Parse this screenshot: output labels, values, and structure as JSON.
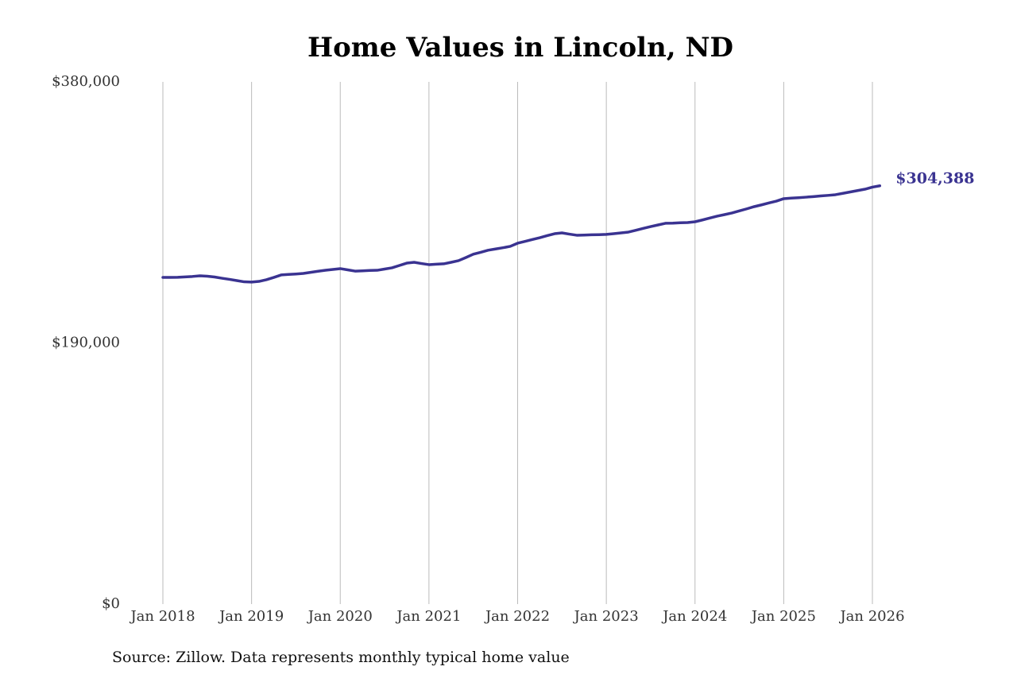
{
  "chart_data": {
    "type": "line",
    "title": "Home Values in Lincoln, ND",
    "source": "Source: Zillow. Data represents monthly typical home value",
    "color": "#3a3391",
    "x": [
      "2018-01",
      "2018-02",
      "2018-03",
      "2018-04",
      "2018-05",
      "2018-06",
      "2018-07",
      "2018-08",
      "2018-09",
      "2018-10",
      "2018-11",
      "2018-12",
      "2019-01",
      "2019-02",
      "2019-03",
      "2019-04",
      "2019-05",
      "2019-06",
      "2019-07",
      "2019-08",
      "2019-09",
      "2019-10",
      "2019-11",
      "2019-12",
      "2020-01",
      "2020-02",
      "2020-03",
      "2020-04",
      "2020-05",
      "2020-06",
      "2020-07",
      "2020-08",
      "2020-09",
      "2020-10",
      "2020-11",
      "2020-12",
      "2021-01",
      "2021-02",
      "2021-03",
      "2021-04",
      "2021-05",
      "2021-06",
      "2021-07",
      "2021-08",
      "2021-09",
      "2021-10",
      "2021-11",
      "2021-12",
      "2022-01",
      "2022-02",
      "2022-03",
      "2022-04",
      "2022-05",
      "2022-06",
      "2022-07",
      "2022-08",
      "2022-09",
      "2022-10",
      "2022-11",
      "2022-12",
      "2023-01",
      "2023-02",
      "2023-03",
      "2023-04",
      "2023-05",
      "2023-06",
      "2023-07",
      "2023-08",
      "2023-09",
      "2023-10",
      "2023-11",
      "2023-12",
      "2024-01",
      "2024-02",
      "2024-03",
      "2024-04",
      "2024-05",
      "2024-06",
      "2024-07",
      "2024-08",
      "2024-09",
      "2024-10",
      "2024-11",
      "2024-12",
      "2025-01",
      "2025-02",
      "2025-03",
      "2025-04",
      "2025-05",
      "2025-06",
      "2025-07",
      "2025-08",
      "2025-09",
      "2025-10",
      "2025-11",
      "2025-12",
      "2026-01",
      "2026-02"
    ],
    "values": [
      237700,
      237700,
      237800,
      238100,
      238400,
      238900,
      238600,
      238000,
      237100,
      236300,
      235400,
      234500,
      234300,
      234800,
      236000,
      237700,
      239500,
      239900,
      240200,
      240600,
      241400,
      242200,
      242900,
      243500,
      244100,
      243200,
      242300,
      242500,
      242800,
      242900,
      243800,
      244700,
      246400,
      248100,
      248700,
      247800,
      247000,
      247300,
      247600,
      248700,
      249900,
      252200,
      254600,
      256000,
      257500,
      258400,
      259300,
      260300,
      262600,
      263900,
      265300,
      266600,
      268100,
      269500,
      270100,
      269200,
      268400,
      268500,
      268700,
      268800,
      269000,
      269500,
      270100,
      270700,
      272000,
      273400,
      274700,
      275900,
      277100,
      277200,
      277500,
      277600,
      278200,
      279500,
      280900,
      282300,
      283400,
      284600,
      286100,
      287600,
      289200,
      290500,
      291900,
      293200,
      295000,
      295400,
      295700,
      296100,
      296500,
      297000,
      297400,
      297900,
      298900,
      299900,
      300900,
      301900,
      303400,
      304388
    ],
    "value_labels": [
      null,
      null,
      null,
      null,
      null,
      null,
      null,
      null,
      null,
      null,
      null,
      null,
      null,
      null,
      null,
      null,
      null,
      null,
      null,
      null,
      null,
      null,
      null,
      null,
      null,
      null,
      null,
      null,
      null,
      null,
      null,
      null,
      null,
      null,
      null,
      null,
      null,
      null,
      null,
      null,
      null,
      null,
      null,
      null,
      null,
      null,
      null,
      null,
      null,
      null,
      null,
      null,
      null,
      null,
      null,
      null,
      null,
      null,
      null,
      null,
      null,
      null,
      null,
      null,
      null,
      null,
      null,
      null,
      null,
      null,
      null,
      null,
      null,
      null,
      null,
      null,
      null,
      null,
      null,
      null,
      null,
      null,
      null,
      null,
      null,
      null,
      null,
      null,
      null,
      null,
      null,
      null,
      null,
      null,
      null,
      null,
      null,
      "$304,388"
    ],
    "ylim": [
      0,
      380000
    ],
    "yticks": [
      {
        "value": 0,
        "label": "$0"
      },
      {
        "value": 190000,
        "label": "$190,000"
      },
      {
        "value": 380000,
        "label": "$380,000"
      }
    ],
    "xticks": [
      {
        "value": "2018-01",
        "label": "Jan 2018"
      },
      {
        "value": "2019-01",
        "label": "Jan 2019"
      },
      {
        "value": "2020-01",
        "label": "Jan 2020"
      },
      {
        "value": "2021-01",
        "label": "Jan 2021"
      },
      {
        "value": "2022-01",
        "label": "Jan 2022"
      },
      {
        "value": "2023-01",
        "label": "Jan 2023"
      },
      {
        "value": "2024-01",
        "label": "Jan 2024"
      },
      {
        "value": "2025-01",
        "label": "Jan 2025"
      },
      {
        "value": "2026-01",
        "label": "Jan 2026"
      }
    ],
    "grid": "x"
  }
}
